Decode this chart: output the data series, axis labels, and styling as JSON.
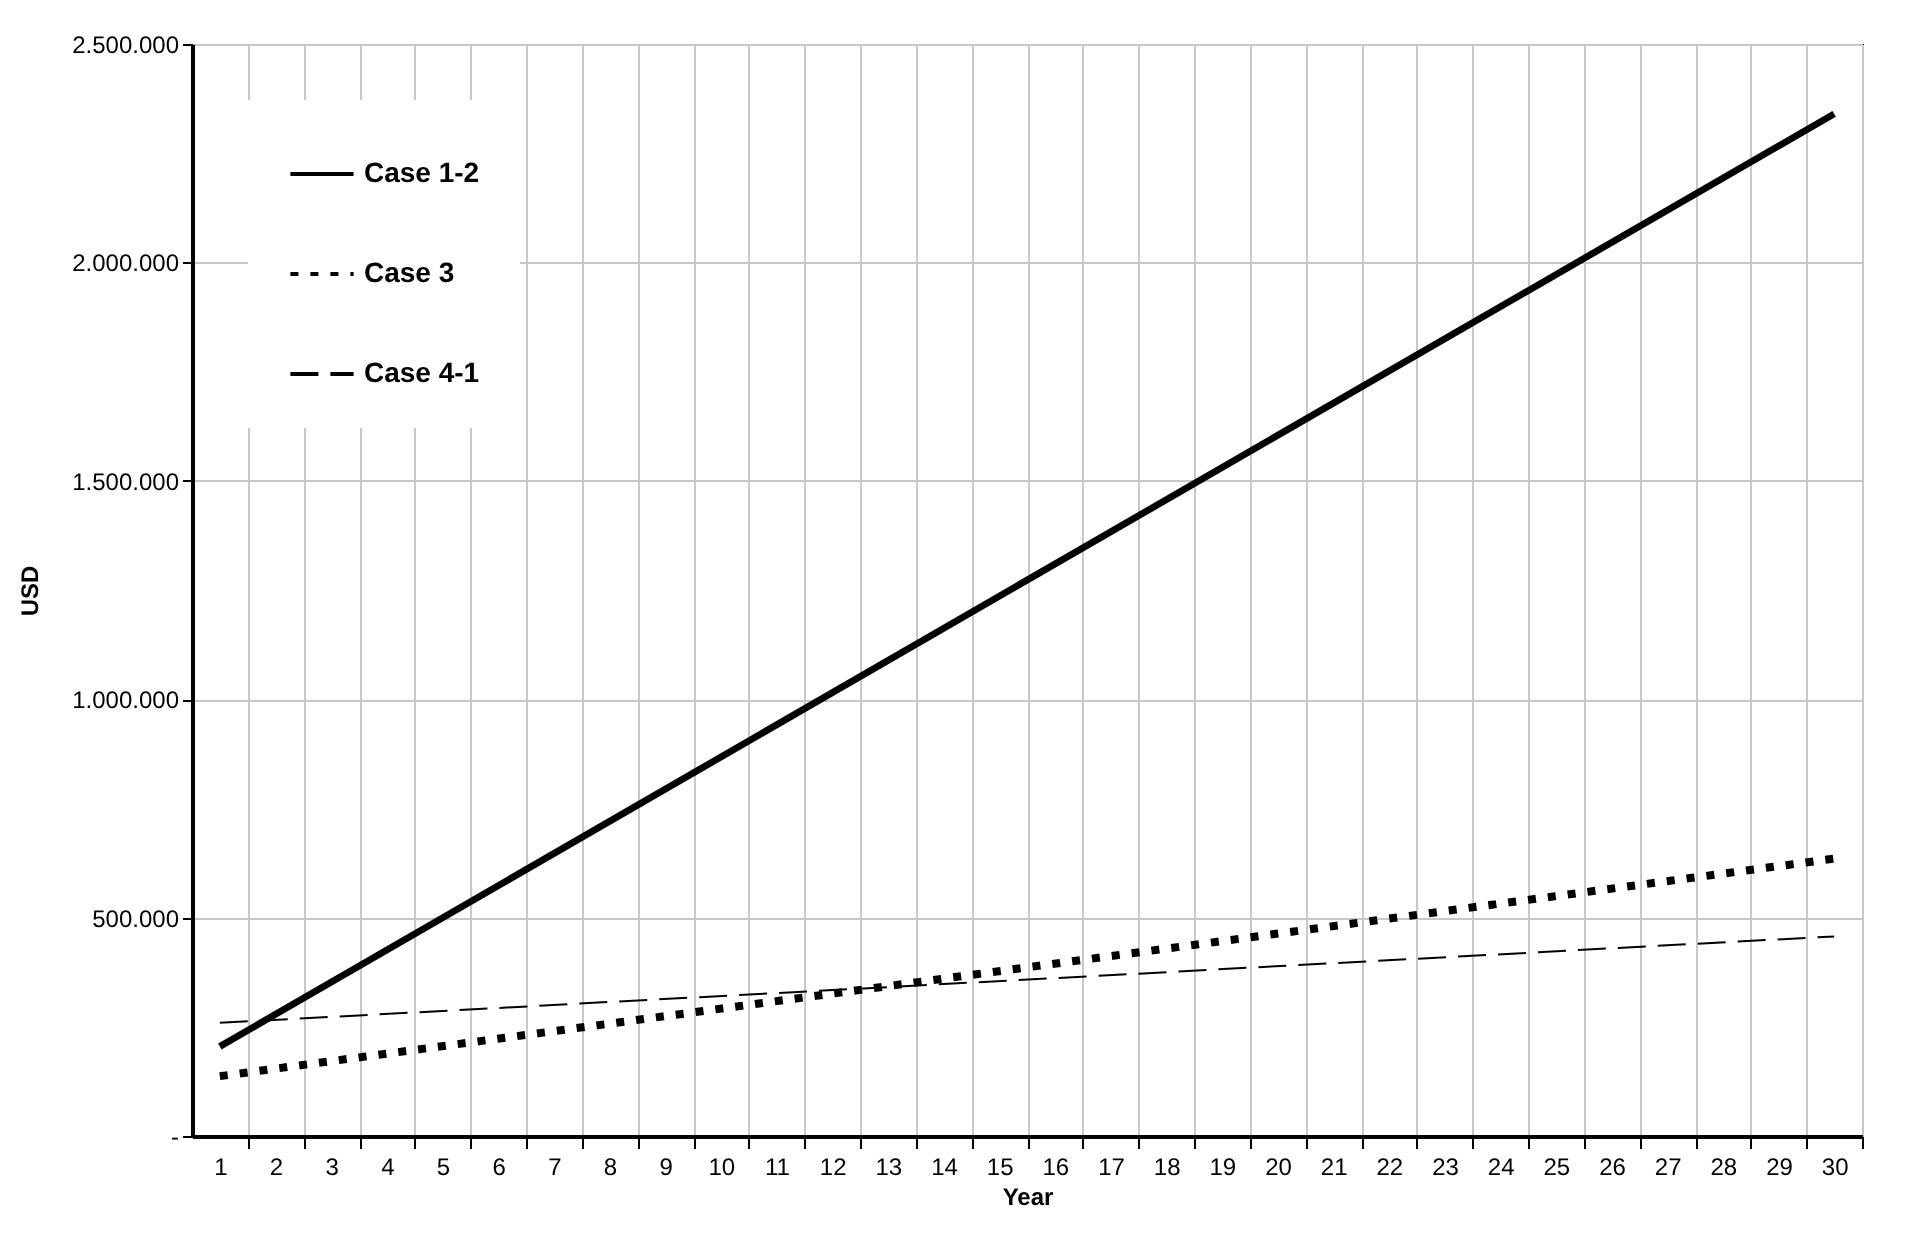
{
  "chart_data": {
    "type": "line",
    "xlabel": "Year",
    "ylabel": "USD",
    "xlim": [
      0.5,
      30.5
    ],
    "xticks": [
      1,
      2,
      3,
      4,
      5,
      6,
      7,
      8,
      9,
      10,
      11,
      12,
      13,
      14,
      15,
      16,
      17,
      18,
      19,
      20,
      21,
      22,
      23,
      24,
      25,
      26,
      27,
      28,
      29,
      30
    ],
    "ylim": [
      0,
      2500000
    ],
    "yticks": [
      {
        "value": 0,
        "label": "-"
      },
      {
        "value": 500000,
        "label": "500.000"
      },
      {
        "value": 1000000,
        "label": "1.000.000"
      },
      {
        "value": 1500000,
        "label": "1.500.000"
      },
      {
        "value": 2000000,
        "label": "2.000.000"
      },
      {
        "value": 2500000,
        "label": "2.500.000"
      }
    ],
    "grid": true,
    "legend": "top left",
    "marker": "none",
    "x": [
      1,
      30
    ],
    "series": [
      {
        "name": "Case 1-2",
        "color": "#000000",
        "line_style": "solid",
        "values": [
          205000,
          2340000
        ]
      },
      {
        "name": "Case 3",
        "color": "#000000",
        "line_style": "dotted",
        "values": [
          137000,
          635000
        ]
      },
      {
        "name": "Case 4-1",
        "color": "#000000",
        "line_style": "dashed",
        "values": [
          259000,
          457000
        ]
      }
    ]
  }
}
